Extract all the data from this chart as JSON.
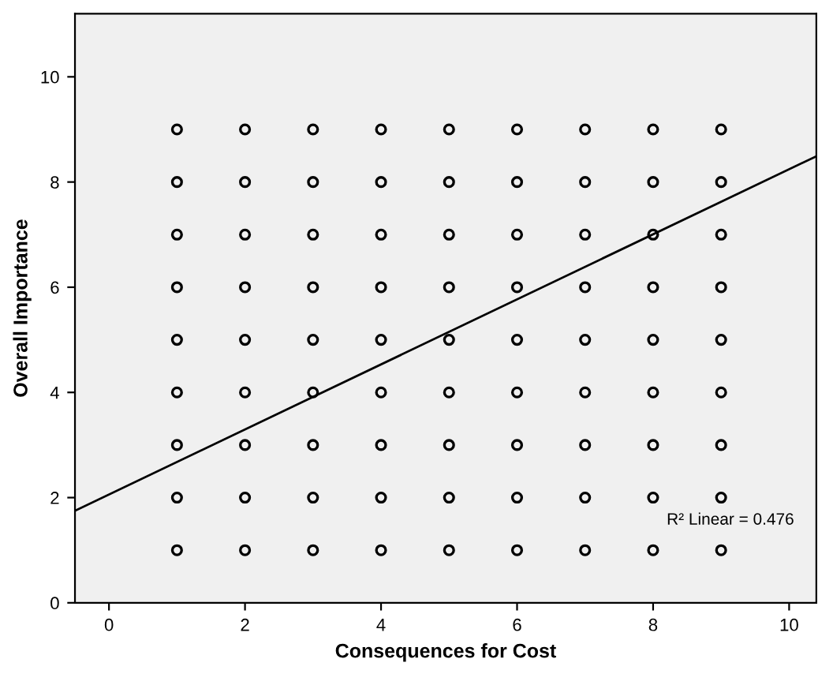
{
  "chart_data": {
    "type": "scatter",
    "xlabel": "Consequences for Cost",
    "ylabel": "Overall Importance",
    "xlim": [
      -0.5,
      10.4
    ],
    "ylim": [
      0,
      11.2
    ],
    "xticks": [
      0,
      2,
      4,
      6,
      8,
      10
    ],
    "yticks": [
      0,
      2,
      4,
      6,
      8,
      10
    ],
    "grid": false,
    "series": [
      {
        "marker": "circle",
        "color": "#000000",
        "x": [
          1,
          1,
          1,
          1,
          1,
          1,
          1,
          1,
          1,
          2,
          2,
          2,
          2,
          2,
          2,
          2,
          2,
          2,
          3,
          3,
          3,
          3,
          3,
          3,
          3,
          3,
          3,
          4,
          4,
          4,
          4,
          4,
          4,
          4,
          4,
          4,
          5,
          5,
          5,
          5,
          5,
          5,
          5,
          5,
          5,
          6,
          6,
          6,
          6,
          6,
          6,
          6,
          6,
          6,
          7,
          7,
          7,
          7,
          7,
          7,
          7,
          7,
          7,
          8,
          8,
          8,
          8,
          8,
          8,
          8,
          8,
          8,
          9,
          9,
          9,
          9,
          9,
          9,
          9,
          9,
          9
        ],
        "values": [
          1,
          2,
          3,
          4,
          5,
          6,
          7,
          8,
          9,
          1,
          2,
          3,
          4,
          5,
          6,
          7,
          8,
          9,
          1,
          2,
          3,
          4,
          5,
          6,
          7,
          8,
          9,
          1,
          2,
          3,
          4,
          5,
          6,
          7,
          8,
          9,
          1,
          2,
          3,
          4,
          5,
          6,
          7,
          8,
          9,
          1,
          2,
          3,
          4,
          5,
          6,
          7,
          8,
          9,
          1,
          2,
          3,
          4,
          5,
          6,
          7,
          8,
          9,
          1,
          2,
          3,
          4,
          5,
          6,
          7,
          8,
          9,
          1,
          2,
          3,
          4,
          5,
          6,
          7,
          8,
          9
        ]
      },
      {
        "type": "line",
        "color": "#000000",
        "x": [
          -0.5,
          10.4
        ],
        "values": [
          1.75,
          8.49
        ]
      }
    ],
    "annotations": [
      "R² Linear = 0.476"
    ]
  }
}
